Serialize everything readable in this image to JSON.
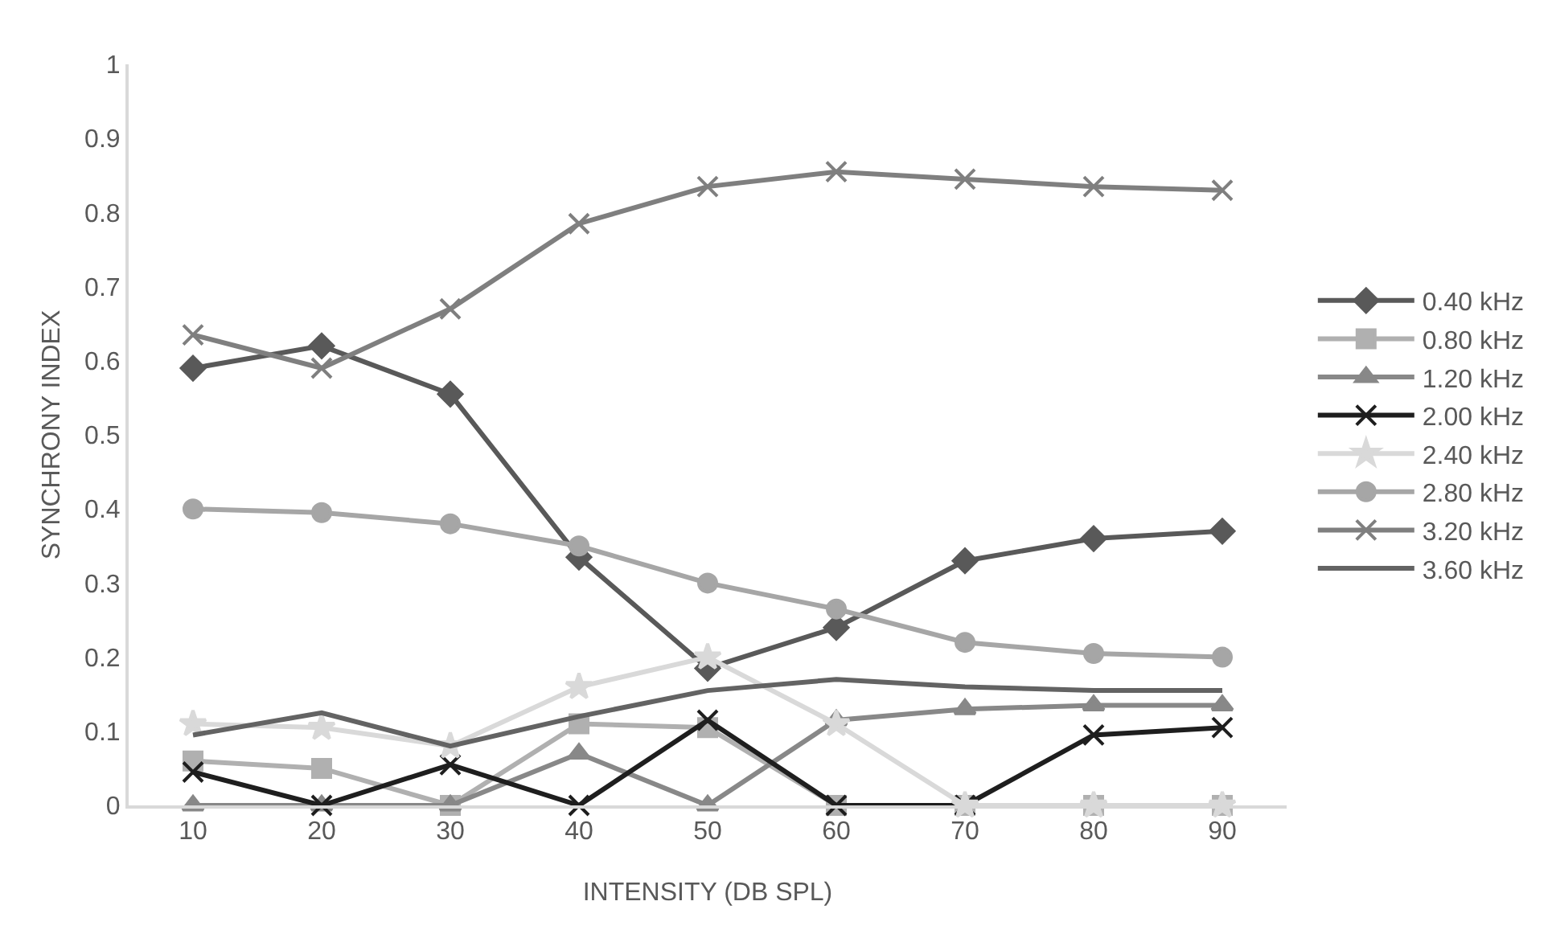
{
  "chart_data": {
    "type": "line",
    "xlabel": "INTENSITY (DB SPL)",
    "ylabel": "SYNCHRONY INDEX",
    "categories": [
      "10",
      "20",
      "30",
      "40",
      "50",
      "60",
      "70",
      "80",
      "90"
    ],
    "ylim": [
      0,
      1
    ],
    "yticks": [
      0,
      0.1,
      0.2,
      0.3,
      0.4,
      0.5,
      0.6,
      0.7,
      0.8,
      0.9,
      1
    ],
    "grid": false,
    "legend": "right",
    "series": [
      {
        "name": "0.40 kHz",
        "color": "#595959",
        "marker": "diamond",
        "values": [
          0.59,
          0.62,
          0.555,
          0.335,
          0.185,
          0.24,
          0.33,
          0.36,
          0.37
        ]
      },
      {
        "name": "0.80 kHz",
        "color": "#b0b0b0",
        "marker": "square",
        "values": [
          0.06,
          0.05,
          0,
          0.11,
          0.105,
          0,
          0,
          0,
          0
        ]
      },
      {
        "name": "1.20 kHz",
        "color": "#888888",
        "marker": "triangle",
        "values": [
          0,
          0,
          0,
          0.07,
          0,
          0.115,
          0.13,
          0.135,
          0.135
        ]
      },
      {
        "name": "2.00 kHz",
        "color": "#1e1e1e",
        "marker": "cross",
        "values": [
          0.045,
          0,
          0.055,
          0,
          0.115,
          0,
          0,
          0.095,
          0.105
        ]
      },
      {
        "name": "2.40 kHz",
        "color": "#d9d9d9",
        "marker": "star",
        "values": [
          0.11,
          0.105,
          0.08,
          0.16,
          0.2,
          0.11,
          0,
          0,
          0
        ]
      },
      {
        "name": "2.80 kHz",
        "color": "#a6a6a6",
        "marker": "circle",
        "values": [
          0.4,
          0.395,
          0.38,
          0.35,
          0.3,
          0.265,
          0.22,
          0.205,
          0.2
        ]
      },
      {
        "name": "3.20 kHz",
        "color": "#7f7f7f",
        "marker": "cross",
        "values": [
          0.635,
          0.59,
          0.67,
          0.785,
          0.835,
          0.855,
          0.845,
          0.835,
          0.83
        ]
      },
      {
        "name": "3.60 kHz",
        "color": "#636363",
        "marker": "none",
        "values": [
          0.095,
          0.125,
          0.08,
          0.12,
          0.155,
          0.17,
          0.16,
          0.155,
          0.155
        ]
      }
    ]
  }
}
